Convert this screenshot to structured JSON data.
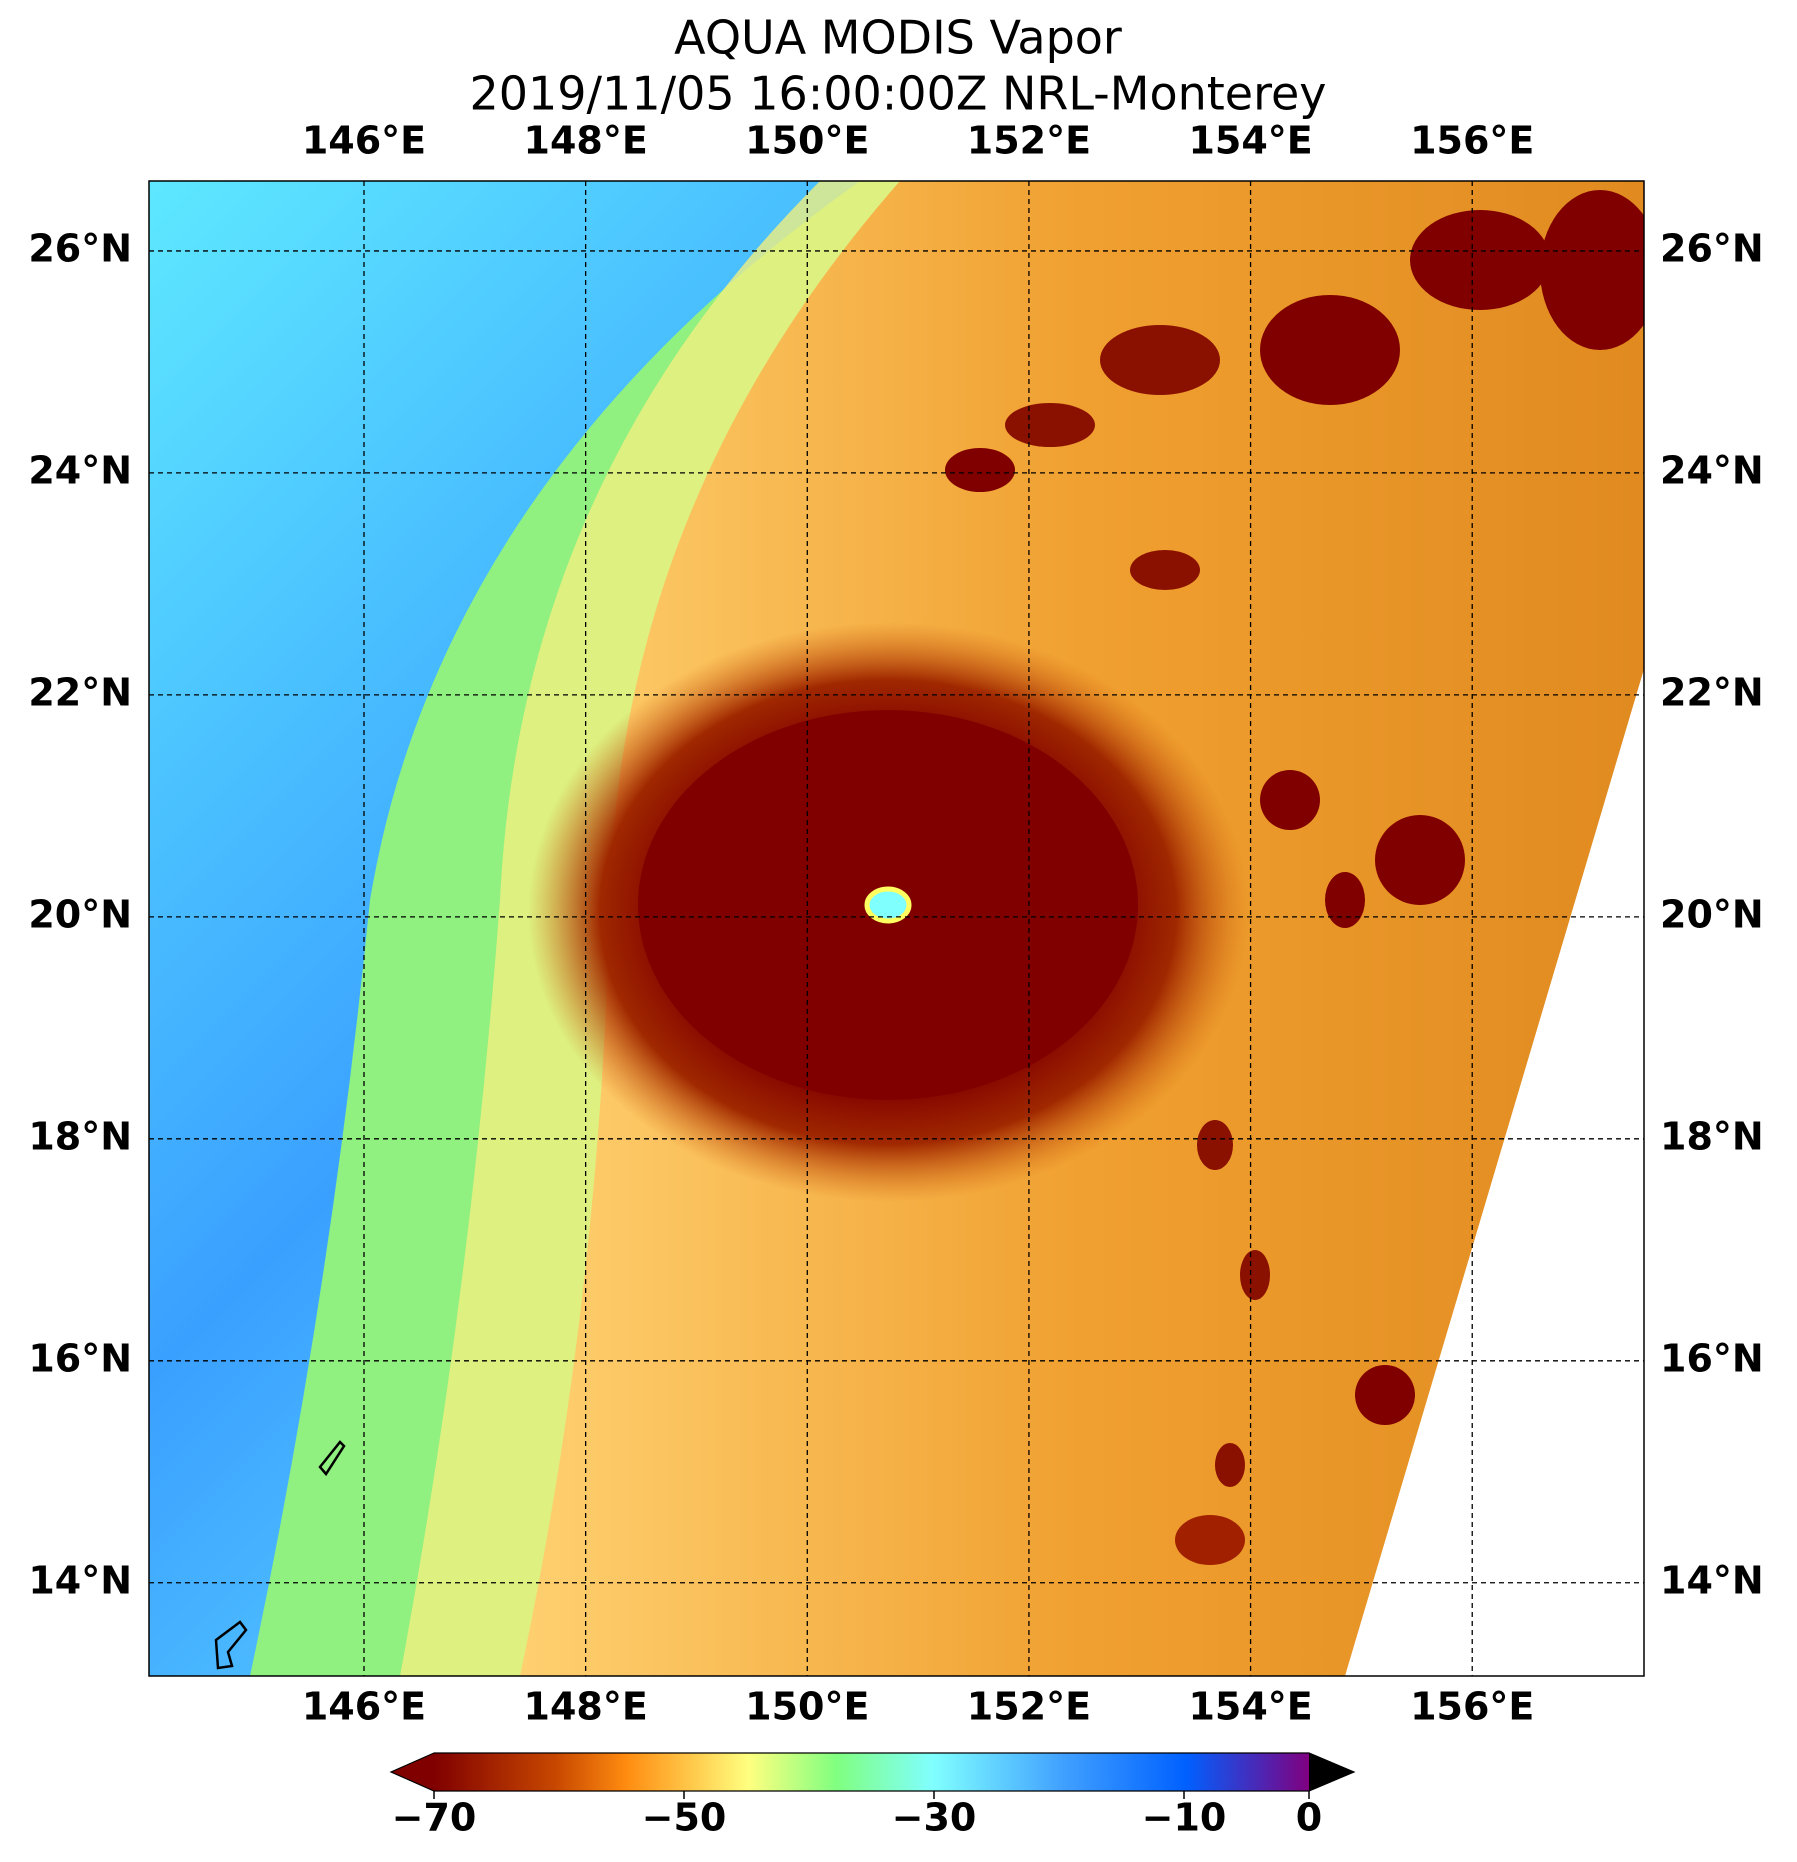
{
  "map": {
    "title": [
      "AQUA MODIS Vapor",
      "2019/11/05 16:00:00Z NRL-Monterey"
    ],
    "lonlim": [
      144.06,
      157.55
    ],
    "latlim": [
      13.16,
      26.63
    ],
    "lonticks": [
      {
        "value": 146,
        "label": "146°E"
      },
      {
        "value": 148,
        "label": "148°E"
      },
      {
        "value": 150,
        "label": "150°E"
      },
      {
        "value": 152,
        "label": "152°E"
      },
      {
        "value": 154,
        "label": "154°E"
      },
      {
        "value": 156,
        "label": "156°E"
      }
    ],
    "latticks": [
      {
        "value": 14,
        "label": "14°N"
      },
      {
        "value": 16,
        "label": "16°N"
      },
      {
        "value": 18,
        "label": "18°N"
      },
      {
        "value": 20,
        "label": "20°N"
      },
      {
        "value": 22,
        "label": "22°N"
      },
      {
        "value": 24,
        "label": "24°N"
      },
      {
        "value": 26,
        "label": "26°N"
      }
    ],
    "colorbar": {
      "lim": [
        -70,
        0
      ],
      "ticks": [
        {
          "value": -70,
          "label": "−70"
        },
        {
          "value": -50,
          "label": "−50"
        },
        {
          "value": -30,
          "label": "−30"
        },
        {
          "value": -10,
          "label": "−10"
        },
        {
          "value": 0,
          "label": "0"
        }
      ]
    }
  }
}
